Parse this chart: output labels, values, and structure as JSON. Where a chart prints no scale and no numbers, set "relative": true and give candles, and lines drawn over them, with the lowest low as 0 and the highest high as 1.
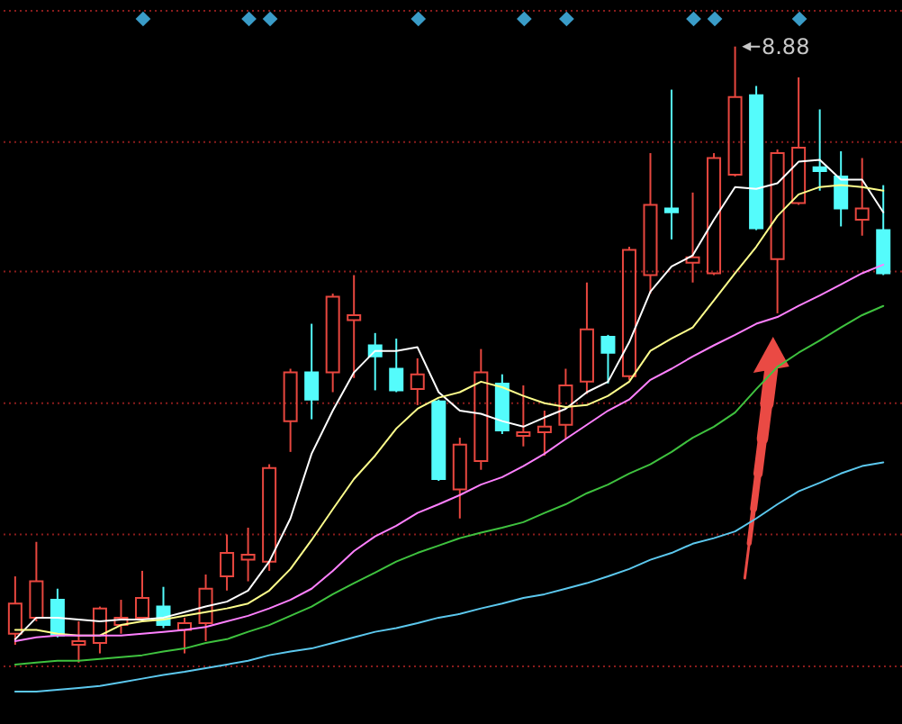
{
  "chart_data": {
    "type": "candlestick",
    "relative": true,
    "tick_labels": false,
    "categories": [
      null,
      null,
      null,
      null,
      null,
      null,
      null,
      null,
      null,
      null,
      null,
      null,
      null,
      null,
      null,
      null,
      null,
      null,
      null,
      null,
      null,
      null,
      null,
      null,
      null,
      null,
      null,
      null,
      null,
      null,
      null,
      null,
      null,
      null,
      null,
      null,
      null,
      null,
      null,
      null,
      null,
      null
    ],
    "ohlc": [
      [
        0.047,
        0.14,
        0.029,
        0.096
      ],
      [
        0.073,
        0.196,
        0.067,
        0.132
      ],
      [
        0.102,
        0.12,
        0.041,
        0.044
      ],
      [
        0.029,
        0.067,
        0.0,
        0.035
      ],
      [
        0.032,
        0.091,
        0.015,
        0.088
      ],
      [
        0.061,
        0.102,
        0.047,
        0.073
      ],
      [
        0.073,
        0.149,
        0.067,
        0.105
      ],
      [
        0.091,
        0.123,
        0.056,
        0.061
      ],
      [
        0.053,
        0.073,
        0.015,
        0.064
      ],
      [
        0.064,
        0.143,
        0.035,
        0.12
      ],
      [
        0.14,
        0.208,
        0.117,
        0.178
      ],
      [
        0.167,
        0.219,
        0.132,
        0.175
      ],
      [
        0.164,
        0.322,
        0.149,
        0.316
      ],
      [
        0.392,
        0.477,
        0.342,
        0.471
      ],
      [
        0.471,
        0.55,
        0.395,
        0.427
      ],
      [
        0.471,
        0.599,
        0.439,
        0.594
      ],
      [
        0.556,
        0.629,
        0.462,
        0.564
      ],
      [
        0.515,
        0.535,
        0.442,
        0.497
      ],
      [
        0.477,
        0.526,
        0.439,
        0.442
      ],
      [
        0.444,
        0.494,
        0.418,
        0.468
      ],
      [
        0.424,
        0.427,
        0.295,
        0.298
      ],
      [
        0.281,
        0.365,
        0.234,
        0.354
      ],
      [
        0.327,
        0.509,
        0.313,
        0.471
      ],
      [
        0.453,
        0.468,
        0.371,
        0.377
      ],
      [
        0.368,
        0.45,
        0.351,
        0.374
      ],
      [
        0.374,
        0.409,
        0.336,
        0.383
      ],
      [
        0.386,
        0.477,
        0.363,
        0.45
      ],
      [
        0.456,
        0.617,
        0.436,
        0.541
      ],
      [
        0.529,
        0.532,
        0.453,
        0.503
      ],
      [
        0.465,
        0.675,
        0.459,
        0.67
      ],
      [
        0.629,
        0.827,
        0.599,
        0.743
      ],
      [
        0.737,
        0.93,
        0.687,
        0.731
      ],
      [
        0.649,
        0.763,
        0.617,
        0.658
      ],
      [
        0.632,
        0.827,
        0.629,
        0.819
      ],
      [
        0.792,
        1.0,
        0.789,
        0.918
      ],
      [
        0.921,
        0.936,
        0.702,
        0.705
      ],
      [
        0.655,
        0.833,
        0.567,
        0.827
      ],
      [
        0.746,
        0.95,
        0.743,
        0.836
      ],
      [
        0.804,
        0.898,
        0.766,
        0.798
      ],
      [
        0.789,
        0.83,
        0.708,
        0.737
      ],
      [
        0.719,
        0.819,
        0.693,
        0.737
      ],
      [
        0.702,
        0.775,
        0.629,
        0.632
      ]
    ],
    "colors": [
      "#e8473f",
      "#e8473f",
      "#54fcfc",
      "#e8473f",
      "#e8473f",
      "#e8473f",
      "#e8473f",
      "#54fcfc",
      "#e8473f",
      "#e8473f",
      "#e8473f",
      "#e8473f",
      "#e8473f",
      "#e8473f",
      "#54fcfc",
      "#e8473f",
      "#e8473f",
      "#54fcfc",
      "#54fcfc",
      "#e8473f",
      "#54fcfc",
      "#e8473f",
      "#e8473f",
      "#54fcfc",
      "#e8473f",
      "#e8473f",
      "#e8473f",
      "#e8473f",
      "#54fcfc",
      "#e8473f",
      "#e8473f",
      "#54fcfc",
      "#e8473f",
      "#e8473f",
      "#e8473f",
      "#54fcfc",
      "#e8473f",
      "#e8473f",
      "#54fcfc",
      "#54fcfc",
      "#e8473f",
      "#54fcfc"
    ],
    "series": [
      {
        "type": "line",
        "color": "#ffffff",
        "values": [
          0.038,
          0.073,
          0.073,
          0.07,
          0.067,
          0.07,
          0.07,
          0.073,
          0.082,
          0.091,
          0.099,
          0.117,
          0.164,
          0.234,
          0.339,
          0.409,
          0.471,
          0.506,
          0.506,
          0.512,
          0.439,
          0.409,
          0.404,
          0.392,
          0.383,
          0.398,
          0.412,
          0.439,
          0.456,
          0.52,
          0.602,
          0.643,
          0.661,
          0.719,
          0.772,
          0.769,
          0.778,
          0.813,
          0.816,
          0.784,
          0.784,
          0.731
        ]
      },
      {
        "type": "line",
        "color": "#ffff8c",
        "values": [
          0.053,
          0.053,
          0.047,
          0.044,
          0.044,
          0.061,
          0.067,
          0.07,
          0.076,
          0.082,
          0.088,
          0.096,
          0.117,
          0.152,
          0.199,
          0.249,
          0.298,
          0.336,
          0.38,
          0.412,
          0.43,
          0.439,
          0.456,
          0.447,
          0.433,
          0.421,
          0.415,
          0.418,
          0.433,
          0.456,
          0.506,
          0.526,
          0.544,
          0.588,
          0.632,
          0.675,
          0.725,
          0.76,
          0.772,
          0.775,
          0.772,
          0.766
        ]
      },
      {
        "type": "line",
        "color": "#ff80ff",
        "values": [
          0.035,
          0.041,
          0.044,
          0.044,
          0.044,
          0.044,
          0.047,
          0.05,
          0.053,
          0.058,
          0.067,
          0.076,
          0.088,
          0.102,
          0.12,
          0.149,
          0.181,
          0.205,
          0.222,
          0.243,
          0.257,
          0.272,
          0.289,
          0.301,
          0.319,
          0.339,
          0.363,
          0.386,
          0.409,
          0.427,
          0.459,
          0.477,
          0.497,
          0.515,
          0.532,
          0.55,
          0.561,
          0.579,
          0.596,
          0.614,
          0.632,
          0.646
        ]
      },
      {
        "type": "line",
        "color": "#3fc23f",
        "values": [
          -0.003,
          0.0,
          0.003,
          0.003,
          0.006,
          0.009,
          0.012,
          0.018,
          0.023,
          0.032,
          0.038,
          0.05,
          0.061,
          0.076,
          0.091,
          0.111,
          0.129,
          0.146,
          0.164,
          0.178,
          0.19,
          0.202,
          0.211,
          0.219,
          0.228,
          0.243,
          0.257,
          0.275,
          0.289,
          0.307,
          0.322,
          0.342,
          0.365,
          0.383,
          0.406,
          0.444,
          0.48,
          0.503,
          0.523,
          0.544,
          0.564,
          0.579
        ]
      },
      {
        "type": "line",
        "color": "#5cc8ee",
        "values": [
          -0.047,
          -0.047,
          -0.044,
          -0.041,
          -0.038,
          -0.032,
          -0.026,
          -0.02,
          -0.015,
          -0.009,
          -0.003,
          0.003,
          0.012,
          0.018,
          0.023,
          0.032,
          0.041,
          0.05,
          0.056,
          0.064,
          0.073,
          0.079,
          0.088,
          0.096,
          0.105,
          0.111,
          0.12,
          0.129,
          0.14,
          0.152,
          0.167,
          0.178,
          0.193,
          0.202,
          0.213,
          0.234,
          0.257,
          0.278,
          0.292,
          0.307,
          0.319,
          0.325
        ]
      }
    ],
    "ref_lines": [
      {
        "axis": "y",
        "value": 1.058,
        "color": "#8a1c1c",
        "line_style": "dotted"
      },
      {
        "axis": "y",
        "value": 0.845,
        "color": "#8a1c1c",
        "line_style": "dotted"
      },
      {
        "axis": "y",
        "value": 0.635,
        "color": "#8a1c1c",
        "line_style": "dotted"
      },
      {
        "axis": "y",
        "value": 0.421,
        "color": "#8a1c1c",
        "line_style": "dotted"
      },
      {
        "axis": "y",
        "value": 0.208,
        "color": "#8a1c1c",
        "line_style": "dotted"
      },
      {
        "axis": "y",
        "value": -0.006,
        "color": "#8a1c1c",
        "line_style": "dotted"
      }
    ],
    "annotations": [
      "8.88"
    ]
  }
}
